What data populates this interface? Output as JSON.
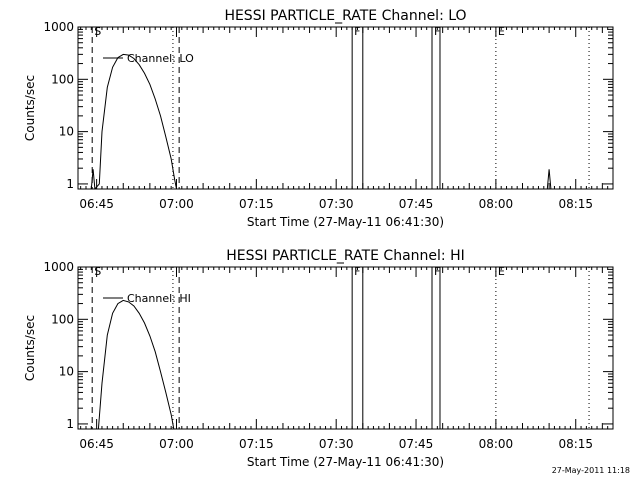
{
  "chart_data": [
    {
      "type": "line",
      "title": "HESSI PARTICLE_RATE Channel: LO",
      "xlabel": "Start Time (27-May-11 06:41:30)",
      "ylabel": "Counts/sec",
      "x_unit": "time (27-May-2011)",
      "xlim": [
        "06:41:30",
        "08:22:00"
      ],
      "ylim": [
        0.8,
        1000
      ],
      "y_scale": "log",
      "x_ticks": [
        "06:45",
        "07:00",
        "07:15",
        "07:30",
        "07:45",
        "08:00",
        "08:15"
      ],
      "y_ticks": [
        "1",
        "10",
        "100",
        "1000"
      ],
      "legend": "top-left",
      "series": [
        {
          "name": "Channel: LO",
          "points": [
            [
              "06:44:00",
              0.8
            ],
            [
              "06:44:20",
              1.9
            ],
            [
              "06:44:40",
              0.8
            ],
            [
              "06:45:30",
              1.0
            ],
            [
              "06:46:00",
              10
            ],
            [
              "06:47:00",
              70
            ],
            [
              "06:48:00",
              170
            ],
            [
              "06:49:00",
              260
            ],
            [
              "06:50:00",
              300
            ],
            [
              "06:51:00",
              290
            ],
            [
              "06:52:00",
              250
            ],
            [
              "06:53:00",
              190
            ],
            [
              "06:54:00",
              130
            ],
            [
              "06:55:00",
              80
            ],
            [
              "06:56:00",
              42
            ],
            [
              "06:57:00",
              20
            ],
            [
              "06:58:00",
              8
            ],
            [
              "06:59:00",
              3
            ],
            [
              "06:59:40",
              1.2
            ],
            [
              "07:00:00",
              0.8
            ],
            [
              "08:09:40",
              0.8
            ],
            [
              "08:10:00",
              1.9
            ],
            [
              "08:10:20",
              0.8
            ]
          ]
        }
      ],
      "markers": [
        {
          "label": "S",
          "style": "dashed",
          "time": "06:44:10"
        },
        {
          "label": "",
          "style": "dotted",
          "time": "06:59:20"
        },
        {
          "label": "",
          "style": "dashed",
          "time": "07:00:30"
        },
        {
          "label": "F",
          "style": "solid",
          "time": "07:33:00"
        },
        {
          "label": "",
          "style": "solid",
          "time": "07:35:00"
        },
        {
          "label": "F",
          "style": "solid",
          "time": "07:48:00"
        },
        {
          "label": "",
          "style": "solid",
          "time": "07:49:30"
        },
        {
          "label": "E",
          "style": "dotted",
          "time": "08:00:00"
        },
        {
          "label": "",
          "style": "dotted",
          "time": "08:17:30"
        }
      ]
    },
    {
      "type": "line",
      "title": "HESSI PARTICLE_RATE Channel: HI",
      "xlabel": "Start Time (27-May-11 06:41:30)",
      "ylabel": "Counts/sec",
      "x_unit": "time (27-May-2011)",
      "xlim": [
        "06:41:30",
        "08:22:00"
      ],
      "ylim": [
        0.8,
        1000
      ],
      "y_scale": "log",
      "x_ticks": [
        "06:45",
        "07:00",
        "07:15",
        "07:30",
        "07:45",
        "08:00",
        "08:15"
      ],
      "y_ticks": [
        "1",
        "10",
        "100",
        "1000"
      ],
      "legend": "top-left",
      "series": [
        {
          "name": "Channel: HI",
          "points": [
            [
              "06:45:20",
              0.8
            ],
            [
              "06:46:00",
              6
            ],
            [
              "06:47:00",
              50
            ],
            [
              "06:48:00",
              130
            ],
            [
              "06:49:00",
              200
            ],
            [
              "06:50:00",
              230
            ],
            [
              "06:51:00",
              215
            ],
            [
              "06:52:00",
              180
            ],
            [
              "06:53:00",
              130
            ],
            [
              "06:54:00",
              85
            ],
            [
              "06:55:00",
              48
            ],
            [
              "06:56:00",
              24
            ],
            [
              "06:57:00",
              10
            ],
            [
              "06:58:00",
              4
            ],
            [
              "06:59:00",
              1.5
            ],
            [
              "06:59:30",
              0.8
            ]
          ]
        }
      ],
      "markers": [
        {
          "label": "S",
          "style": "dashed",
          "time": "06:44:10"
        },
        {
          "label": "",
          "style": "dotted",
          "time": "06:59:20"
        },
        {
          "label": "",
          "style": "dashed",
          "time": "07:00:30"
        },
        {
          "label": "F",
          "style": "solid",
          "time": "07:33:00"
        },
        {
          "label": "",
          "style": "solid",
          "time": "07:35:00"
        },
        {
          "label": "F",
          "style": "solid",
          "time": "07:48:00"
        },
        {
          "label": "",
          "style": "solid",
          "time": "07:49:30"
        },
        {
          "label": "E",
          "style": "dotted",
          "time": "08:00:00"
        },
        {
          "label": "",
          "style": "dotted",
          "time": "08:17:30"
        }
      ]
    }
  ],
  "footer": {
    "timestamp": "27-May-2011 11:18"
  }
}
